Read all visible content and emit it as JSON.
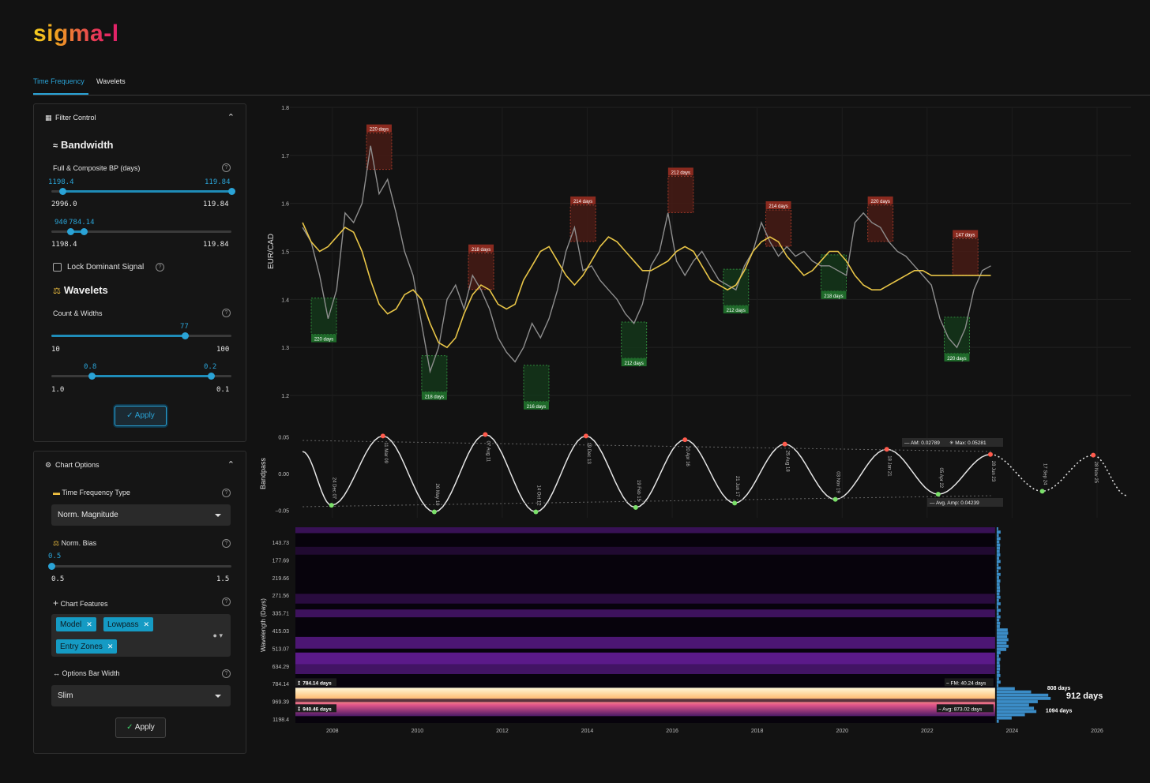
{
  "app": {
    "logo": "sigma-l"
  },
  "tabs": [
    {
      "label": "Time Frequency"
    },
    {
      "label": "Wavelets"
    }
  ],
  "filter_control": {
    "title": "Filter Control",
    "bandwidth": {
      "heading": "Bandwidth",
      "label": "Full & Composite BP (days)",
      "slider1": {
        "low_value": "1198.4",
        "high_value": "119.84",
        "min": "2996.0",
        "max": "119.84"
      },
      "slider2": {
        "low_value": "940",
        "high_value": "784.14",
        "min": "1198.4",
        "max": "119.84"
      }
    },
    "lock_label": "Lock Dominant Signal",
    "wavelets": {
      "heading": "Wavelets",
      "label": "Count & Widths",
      "count": {
        "value": "77",
        "min": "10",
        "max": "100"
      },
      "widths": {
        "low_value": "0.8",
        "high_value": "0.2",
        "min": "1.0",
        "max": "0.1"
      }
    },
    "apply_label": "Apply"
  },
  "chart_options": {
    "title": "Chart Options",
    "tf_type": {
      "label": "Time Frequency Type",
      "value": "Norm. Magnitude"
    },
    "norm_bias": {
      "label": "Norm. Bias",
      "value": "0.5",
      "min": "0.5",
      "max": "1.5"
    },
    "features": {
      "label": "Chart Features",
      "chips": [
        "Model",
        "Lowpass",
        "Entry Zones"
      ]
    },
    "bar_width": {
      "label": "Options Bar Width",
      "value": "Slim"
    },
    "apply_label": "Apply"
  },
  "chart_data": [
    {
      "type": "line",
      "ylabel": "EUR/CAD",
      "ylim": [
        1.2,
        1.8
      ],
      "yticks": [
        "1.8",
        "1.7",
        "1.6",
        "1.5",
        "1.4",
        "1.3",
        "1.2"
      ],
      "x": [
        2007.3,
        2007.5,
        2007.7,
        2007.9,
        2008.1,
        2008.3,
        2008.5,
        2008.7,
        2008.9,
        2009.1,
        2009.3,
        2009.5,
        2009.7,
        2009.9,
        2010.1,
        2010.3,
        2010.5,
        2010.7,
        2010.9,
        2011.1,
        2011.3,
        2011.5,
        2011.7,
        2011.9,
        2012.1,
        2012.3,
        2012.5,
        2012.7,
        2012.9,
        2013.1,
        2013.3,
        2013.5,
        2013.7,
        2013.9,
        2014.1,
        2014.3,
        2014.5,
        2014.7,
        2014.9,
        2015.1,
        2015.3,
        2015.5,
        2015.7,
        2015.9,
        2016.1,
        2016.3,
        2016.5,
        2016.7,
        2016.9,
        2017.1,
        2017.3,
        2017.5,
        2017.7,
        2017.9,
        2018.1,
        2018.3,
        2018.5,
        2018.7,
        2018.9,
        2019.1,
        2019.3,
        2019.5,
        2019.7,
        2019.9,
        2020.1,
        2020.3,
        2020.5,
        2020.7,
        2020.9,
        2021.1,
        2021.3,
        2021.5,
        2021.7,
        2021.9,
        2022.1,
        2022.3,
        2022.5,
        2022.7,
        2022.9,
        2023.1,
        2023.3,
        2023.5
      ],
      "series": [
        {
          "values": [
            1.55,
            1.52,
            1.45,
            1.36,
            1.42,
            1.58,
            1.56,
            1.6,
            1.72,
            1.62,
            1.65,
            1.58,
            1.5,
            1.45,
            1.35,
            1.25,
            1.3,
            1.4,
            1.43,
            1.38,
            1.45,
            1.42,
            1.38,
            1.32,
            1.29,
            1.27,
            1.3,
            1.35,
            1.32,
            1.36,
            1.42,
            1.5,
            1.55,
            1.46,
            1.47,
            1.44,
            1.42,
            1.4,
            1.37,
            1.35,
            1.39,
            1.47,
            1.5,
            1.58,
            1.48,
            1.45,
            1.48,
            1.5,
            1.47,
            1.44,
            1.43,
            1.42,
            1.47,
            1.5,
            1.56,
            1.52,
            1.49,
            1.51,
            1.49,
            1.5,
            1.48,
            1.47,
            1.47,
            1.46,
            1.45,
            1.56,
            1.58,
            1.56,
            1.55,
            1.52,
            1.5,
            1.49,
            1.47,
            1.45,
            1.43,
            1.36,
            1.32,
            1.3,
            1.34,
            1.42,
            1.46,
            1.47
          ]
        },
        {
          "values": [
            1.56,
            1.52,
            1.5,
            1.51,
            1.53,
            1.55,
            1.54,
            1.5,
            1.44,
            1.39,
            1.37,
            1.38,
            1.41,
            1.42,
            1.4,
            1.35,
            1.31,
            1.3,
            1.32,
            1.37,
            1.41,
            1.43,
            1.42,
            1.39,
            1.38,
            1.39,
            1.44,
            1.47,
            1.5,
            1.51,
            1.48,
            1.45,
            1.43,
            1.45,
            1.48,
            1.51,
            1.53,
            1.52,
            1.5,
            1.48,
            1.46,
            1.46,
            1.47,
            1.48,
            1.5,
            1.51,
            1.5,
            1.47,
            1.44,
            1.43,
            1.42,
            1.43,
            1.46,
            1.5,
            1.52,
            1.53,
            1.52,
            1.49,
            1.47,
            1.45,
            1.46,
            1.48,
            1.5,
            1.5,
            1.48,
            1.45,
            1.43,
            1.42,
            1.42,
            1.43,
            1.44,
            1.45,
            1.46,
            1.46,
            1.45,
            1.45,
            1.45,
            1.45,
            1.45,
            1.45,
            1.45,
            1.45
          ]
        }
      ],
      "peak_zones": [
        {
          "label": "220 days",
          "x": 2009.1,
          "y": 1.72,
          "side": "top"
        },
        {
          "label": "218 days",
          "x": 2011.5,
          "y": 1.47,
          "side": "top"
        },
        {
          "label": "214 days",
          "x": 2013.9,
          "y": 1.57,
          "side": "top"
        },
        {
          "label": "212 days",
          "x": 2016.2,
          "y": 1.63,
          "side": "top"
        },
        {
          "label": "214 days",
          "x": 2018.5,
          "y": 1.56,
          "side": "top"
        },
        {
          "label": "220 days",
          "x": 2020.9,
          "y": 1.57,
          "side": "top"
        },
        {
          "label": "147 days",
          "x": 2022.9,
          "y": 1.5,
          "side": "top"
        }
      ],
      "trough_zones": [
        {
          "label": "220 days",
          "x": 2007.8,
          "y": 1.37,
          "side": "bottom"
        },
        {
          "label": "218 days",
          "x": 2010.4,
          "y": 1.25,
          "side": "bottom"
        },
        {
          "label": "216 days",
          "x": 2012.8,
          "y": 1.23,
          "side": "bottom"
        },
        {
          "label": "212 days",
          "x": 2015.1,
          "y": 1.32,
          "side": "bottom"
        },
        {
          "label": "212 days",
          "x": 2017.5,
          "y": 1.43,
          "side": "bottom"
        },
        {
          "label": "218 days",
          "x": 2019.8,
          "y": 1.46,
          "side": "bottom"
        },
        {
          "label": "220 days",
          "x": 2022.7,
          "y": 1.33,
          "side": "bottom"
        }
      ]
    },
    {
      "type": "line",
      "ylabel": "Bandpass",
      "ylim": [
        -0.06,
        0.06
      ],
      "yticks": [
        "0.05",
        "0.00",
        "−0.05"
      ],
      "cycle_points": [
        {
          "label": "24 Dec 07",
          "x": 2007.98,
          "y": -0.043,
          "kind": "trough"
        },
        {
          "label": "11 Mar 09",
          "x": 2009.19,
          "y": 0.051,
          "kind": "peak"
        },
        {
          "label": "26 May 10",
          "x": 2010.4,
          "y": -0.052,
          "kind": "trough"
        },
        {
          "label": "07 Aug 11",
          "x": 2011.6,
          "y": 0.053,
          "kind": "peak"
        },
        {
          "label": "14 Oct 12",
          "x": 2012.79,
          "y": -0.052,
          "kind": "trough"
        },
        {
          "label": "19 Dec 13",
          "x": 2013.97,
          "y": 0.051,
          "kind": "peak"
        },
        {
          "label": "19 Feb 15",
          "x": 2015.14,
          "y": -0.046,
          "kind": "trough"
        },
        {
          "label": "20 Apr 16",
          "x": 2016.3,
          "y": 0.046,
          "kind": "peak"
        },
        {
          "label": "21 Jun 17",
          "x": 2017.47,
          "y": -0.04,
          "kind": "trough"
        },
        {
          "label": "25 Aug 18",
          "x": 2018.65,
          "y": 0.04,
          "kind": "peak"
        },
        {
          "label": "03 Nov 19",
          "x": 2019.84,
          "y": -0.035,
          "kind": "trough"
        },
        {
          "label": "18 Jan 21",
          "x": 2021.05,
          "y": 0.033,
          "kind": "peak"
        },
        {
          "label": "05 Apr 22",
          "x": 2022.26,
          "y": -0.028,
          "kind": "trough"
        },
        {
          "label": "28 Jun 23",
          "x": 2023.49,
          "y": 0.026,
          "kind": "peak"
        },
        {
          "label": "17 Sep 24",
          "x": 2024.71,
          "y": -0.024,
          "kind": "trough"
        },
        {
          "label": "28 Nov 25",
          "x": 2025.91,
          "y": 0.025,
          "kind": "peak"
        }
      ],
      "annotations": {
        "am": "AM: 0.02789",
        "max": "Max: 0.05281",
        "avg_amp": "Avg. Amp: 0.04239"
      }
    },
    {
      "type": "heatmap",
      "ylabel": "Wavelength (Days)",
      "yticks": [
        "143.73",
        "177.69",
        "219.66",
        "271.56",
        "335.71",
        "415.03",
        "513.07",
        "634.29",
        "784.14",
        "969.39",
        "1198.4"
      ],
      "xticks": [
        "2008",
        "2010",
        "2012",
        "2014",
        "2016",
        "2018",
        "2020",
        "2022",
        "2024",
        "2026"
      ],
      "band_labels": {
        "upper": "784.14 days",
        "lower": "940.46 days",
        "fm": "FM: 40.24 days",
        "avg": "Avg: 873.02 days"
      },
      "spectrum_labels": {
        "p1": "808 days",
        "p2": "912 days",
        "p3": "1094 days"
      }
    }
  ]
}
